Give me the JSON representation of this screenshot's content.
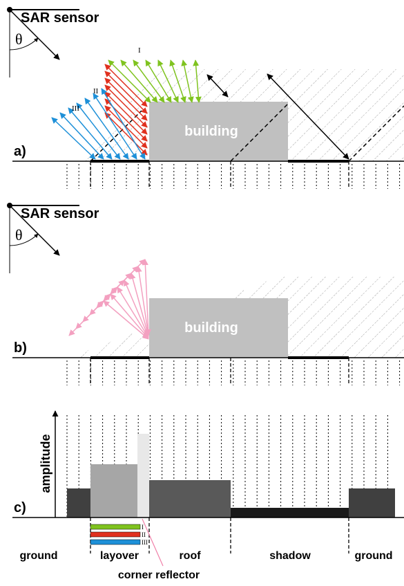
{
  "panels": [
    {
      "label": "a)",
      "sensor": "SAR sensor",
      "angle": "θ",
      "building": "building",
      "rays": [
        "I",
        "II",
        "III"
      ]
    },
    {
      "label": "b)",
      "sensor": "SAR sensor",
      "angle": "θ",
      "building": "building"
    },
    {
      "label": "c)",
      "axis": "amplitude",
      "bars": [
        "I",
        "II",
        "III"
      ]
    }
  ],
  "regions": [
    "ground",
    "layover",
    "roof",
    "shadow",
    "ground"
  ],
  "annotation": "corner reflector"
}
